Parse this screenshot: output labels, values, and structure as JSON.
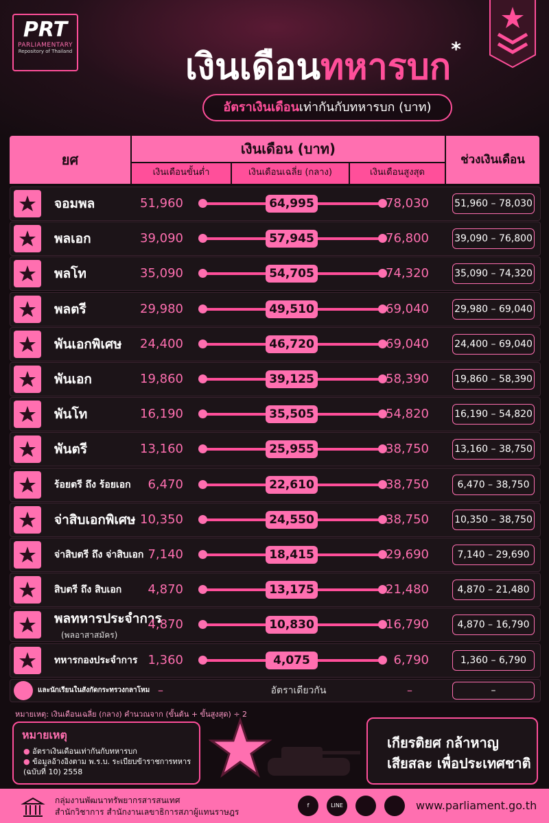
{
  "header": {
    "logo": "PRT",
    "logo_line1": "PARLIAMENTARY",
    "logo_line2": "Repository of Thailand",
    "title_part1": "เงินเดือน",
    "title_part2": "ทหารบก",
    "title_mark": "*",
    "subtitle_part1": "อัตราเงินเดือน",
    "subtitle_part2": "เท่ากันกับทหารบก (บาท)"
  },
  "table": {
    "headers": {
      "rank": "ยศ",
      "salary": "เงินเดือน (บาท)",
      "min": "เงินเดือนขั้นต่ำ",
      "avg": "เงินเดือนเฉลี่ย (กลาง)",
      "max": "เงินเดือนสูงสุด",
      "range": "ช่วงเงินเดือน"
    },
    "rows": [
      {
        "rank": "จอมพล",
        "min": "51,960",
        "avg": "64,995",
        "max": "78,030",
        "range": "51,960 – 78,030"
      },
      {
        "rank": "พลเอก",
        "min": "39,090",
        "avg": "57,945",
        "max": "76,800",
        "range": "39,090 – 76,800"
      },
      {
        "rank": "พลโท",
        "min": "35,090",
        "avg": "54,705",
        "max": "74,320",
        "range": "35,090 – 74,320"
      },
      {
        "rank": "พลตรี",
        "min": "29,980",
        "avg": "49,510",
        "max": "69,040",
        "range": "29,980 – 69,040"
      },
      {
        "rank": "พันเอกพิเศษ",
        "min": "24,400",
        "avg": "46,720",
        "max": "69,040",
        "range": "24,400 – 69,040"
      },
      {
        "rank": "พันเอก",
        "min": "19,860",
        "avg": "39,125",
        "max": "58,390",
        "range": "19,860 – 58,390"
      },
      {
        "rank": "พันโท",
        "min": "16,190",
        "avg": "35,505",
        "max": "54,820",
        "range": "16,190 – 54,820"
      },
      {
        "rank": "พันตรี",
        "min": "13,160",
        "avg": "25,955",
        "max": "38,750",
        "range": "13,160 – 38,750"
      },
      {
        "rank": "ร้อยตรี ถึง ร้อยเอก",
        "min": "6,470",
        "avg": "22,610",
        "max": "38,750",
        "range": "6,470 – 38,750"
      },
      {
        "rank": "จ่าสิบเอกพิเศษ",
        "min": "10,350",
        "avg": "24,550",
        "max": "38,750",
        "range": "10,350 – 38,750"
      },
      {
        "rank": "จ่าสิบตรี ถึง จ่าสิบเอก",
        "min": "7,140",
        "avg": "18,415",
        "max": "29,690",
        "range": "7,140 – 29,690"
      },
      {
        "rank": "สิบตรี ถึง สิบเอก",
        "min": "4,870",
        "avg": "13,175",
        "max": "21,480",
        "range": "4,870 – 21,480"
      },
      {
        "rank": "พลทหารประจำการ",
        "note": "(พลอาสาสมัคร)",
        "min": "4,870",
        "avg": "10,830",
        "max": "16,790",
        "range": "4,870 – 16,790"
      },
      {
        "rank": "ทหารกองประจำการ",
        "min": "1,360",
        "avg": "4,075",
        "max": "6,790",
        "range": "1,360 – 6,790"
      }
    ],
    "last_row": {
      "rank": "และนักเรียนในสังกัดกระทรวงกลาโหม",
      "min": "–",
      "avg": "อัตราเดียวกัน",
      "max": "–",
      "range": "–"
    }
  },
  "footnote": "หมายเหตุ: เงินเดือนเฉลี่ย (กลาง) คำนวณจาก (ขั้นต้น + ขั้นสูงสุด) ÷ 2",
  "notes": {
    "title": "หมายเหตุ",
    "items": [
      "อัตราเงินเดือนเท่ากันกับทหารบก",
      "ข้อมูลอ้างอิงตาม พ.ร.บ. ระเบียบข้าราชการทหาร (ฉบับที่ 10) 2558"
    ]
  },
  "quote": {
    "line1": "เกียรติยศ กล้าหาญ",
    "line2": "เสียสละ เพื่อประเทศชาติ"
  },
  "footer": {
    "org_line1": "กลุ่มงานพัฒนาทรัพยากรสารสนเทศ",
    "org_line2": "สำนักวิชาการ สำนักงานเลขาธิการสภาผู้แทนราษฎร",
    "line_label": "LINE",
    "url": "www.parliament.go.th"
  }
}
